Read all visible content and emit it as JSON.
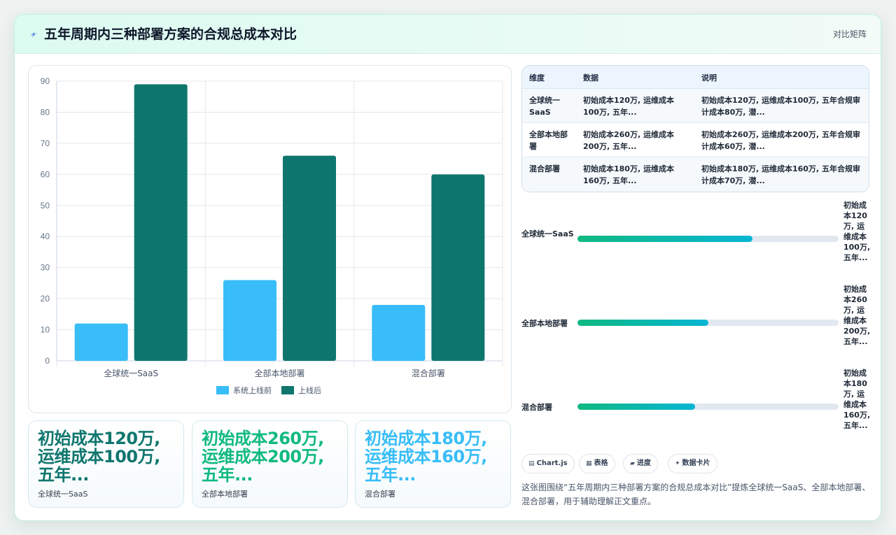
{
  "header": {
    "icon": "lightning-icon",
    "title": "五年周期内三种部署方案的合规总成本对比",
    "badge": "对比矩阵"
  },
  "colors": {
    "before": "#38bdf8",
    "after": "#0f766e",
    "kpi": [
      "#0f766e",
      "#10b981",
      "#38bdf8"
    ]
  },
  "chart_data": {
    "type": "bar",
    "categories": [
      "全球统一SaaS",
      "全部本地部署",
      "混合部署"
    ],
    "series": [
      {
        "name": "系统上线前",
        "values": [
          12,
          26,
          18
        ]
      },
      {
        "name": "上线后",
        "values": [
          89,
          66,
          60
        ]
      }
    ],
    "ylim": [
      0,
      90
    ],
    "yticks": [
      "0",
      "10",
      "20",
      "30",
      "40",
      "50",
      "60",
      "70",
      "80",
      "90"
    ],
    "grid": true,
    "legend": "bottom"
  },
  "kpis": [
    {
      "value": "初始成本120万, 运维成本100万, 五年...",
      "label": "全球统一SaaS"
    },
    {
      "value": "初始成本260万, 运维成本200万, 五年...",
      "label": "全部本地部署"
    },
    {
      "value": "初始成本180万, 运维成本160万, 五年...",
      "label": "混合部署"
    }
  ],
  "table": {
    "headers": [
      "维度",
      "数据",
      "说明"
    ],
    "rows": [
      {
        "dim": "全球统一SaaS",
        "data": "初始成本120万, 运维成本100万, 五年...",
        "note": "初始成本120万, 运维成本100万, 五年合规审计成本80万, 潜..."
      },
      {
        "dim": "全部本地部署",
        "data": "初始成本260万, 运维成本200万, 五年...",
        "note": "初始成本260万, 运维成本200万, 五年合规审计成本60万, 潜..."
      },
      {
        "dim": "混合部署",
        "data": "初始成本180万, 运维成本160万, 五年...",
        "note": "初始成本180万, 运维成本160万, 五年合规审计成本70万, 潜..."
      }
    ]
  },
  "progress": [
    {
      "label": "全球统一SaaS",
      "value": "初始成本120万, 运维成本100万, 五年...",
      "fill_pct": 67
    },
    {
      "label": "全部本地部署",
      "value": "初始成本260万, 运维成本200万, 五年...",
      "fill_pct": 50
    },
    {
      "label": "混合部署",
      "value": "初始成本180万, 运维成本160万, 五年...",
      "fill_pct": 45
    }
  ],
  "chips": [
    {
      "icon": "chart-icon",
      "glyph": "▤",
      "label": "Chart.js"
    },
    {
      "icon": "table-icon",
      "glyph": "▦",
      "label": "表格"
    },
    {
      "icon": "progress-icon",
      "glyph": "▰",
      "label": "进度"
    },
    {
      "icon": "card-icon",
      "glyph": "✦",
      "label": "数据卡片"
    }
  ],
  "summary": "这张图围绕“五年周期内三种部署方案的合规总成本对比”提炼全球统一SaaS、全部本地部署、混合部署，用于辅助理解正文重点。"
}
